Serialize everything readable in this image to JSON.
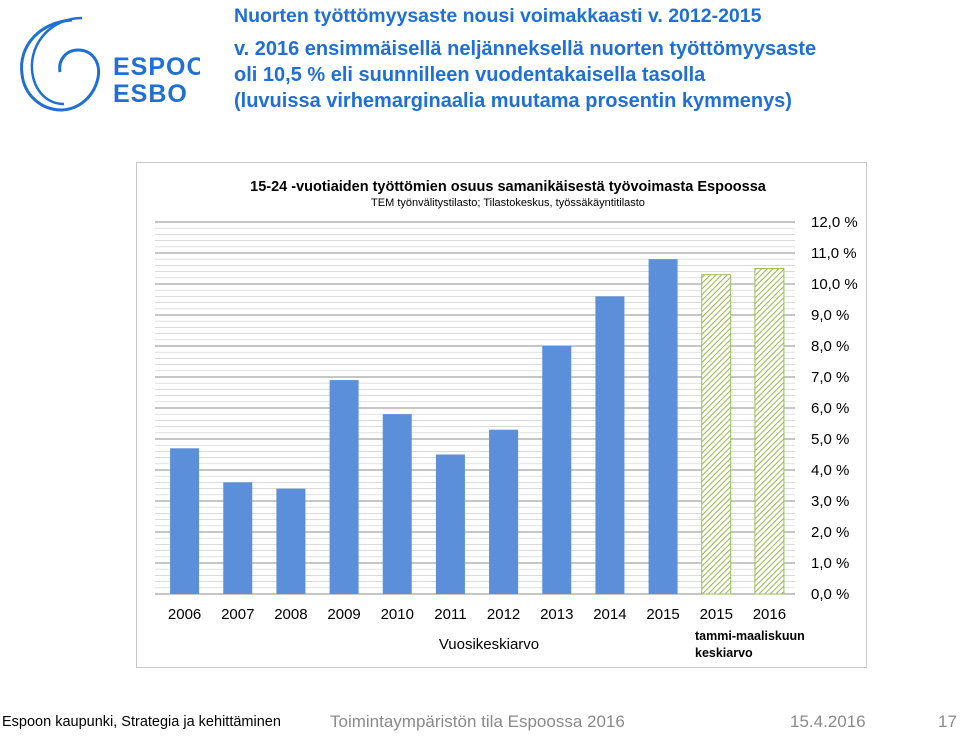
{
  "header": {
    "title": "Nuorten työttömyysaste nousi voimakkaasti v. 2012-2015",
    "subtitle_lines": [
      "v. 2016 ensimmäisellä neljänneksellä nuorten työttömyysaste",
      "oli 10,5 % eli suunnilleen vuodentakaisella tasolla",
      "(luvuissa virhemarginaalia muutama prosentin kymmenys)"
    ]
  },
  "logo": {
    "line1": "ESPOO",
    "line2": "ESBO",
    "color": "#1f6fd6"
  },
  "colors": {
    "solid_bar": "#5b8fd9",
    "hatched_bar": "#9bbb59",
    "accent_text": "#1f6fd6"
  },
  "chart_data": {
    "type": "bar",
    "title": "15-24 -vuotiaiden työttömien osuus samanikäisestä työvoimasta Espoossa",
    "subtitle": "TEM työnvälitystilasto; Tilastokeskus, työssäkäyntitilasto",
    "categories": [
      "2006",
      "2007",
      "2008",
      "2009",
      "2010",
      "2011",
      "2012",
      "2013",
      "2014",
      "2015",
      "2015",
      "2016"
    ],
    "values": [
      4.7,
      3.6,
      3.4,
      6.9,
      5.8,
      4.5,
      5.3,
      8.0,
      9.6,
      10.8,
      10.3,
      10.5
    ],
    "styles": [
      "solid",
      "solid",
      "solid",
      "solid",
      "solid",
      "solid",
      "solid",
      "solid",
      "solid",
      "solid",
      "hatched",
      "hatched"
    ],
    "ylim": [
      0,
      12
    ],
    "yticks": [
      "0,0 %",
      "1,0 %",
      "2,0 %",
      "3,0 %",
      "4,0 %",
      "5,0 %",
      "6,0 %",
      "7,0 %",
      "8,0 %",
      "9,0 %",
      "10,0 %",
      "11,0 %",
      "12,0 %"
    ],
    "y_axis_side": "right",
    "grid": true,
    "group_labels": [
      {
        "text": "Vuosikeskiarvo"
      },
      {
        "text": "tammi-maaliskuun\nkeskiarvo"
      }
    ]
  },
  "footer": {
    "left": "Espoon kaupunki, Strategia ja kehittäminen",
    "middle": "Toimintaympäristön tila Espoossa 2016",
    "date": "15.4.2016",
    "page": "17"
  }
}
